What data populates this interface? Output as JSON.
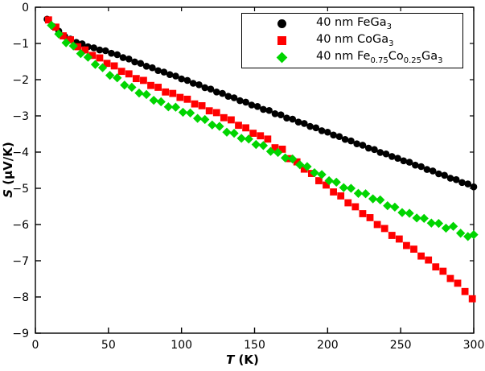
{
  "chart_data": {
    "type": "scatter",
    "title": "",
    "xlabel_var": "T",
    "xlabel_unit": " (K)",
    "ylabel_var": "S",
    "ylabel_unit": " (µV/K)",
    "xlim": [
      0,
      300
    ],
    "ylim": [
      -9,
      0
    ],
    "grid": false,
    "legend_position": "upper right",
    "background_color": "#ffffff",
    "axis_color": "#000000",
    "x_ticks": {
      "values": [
        0,
        50,
        100,
        150,
        200,
        250,
        300
      ],
      "labels": [
        "0",
        "50",
        "100",
        "150",
        "200",
        "250",
        "300"
      ]
    },
    "y_ticks": {
      "values": [
        0,
        -1,
        -2,
        -3,
        -4,
        -5,
        -6,
        -7,
        -8,
        -9
      ],
      "labels": [
        "0",
        "−1",
        "−2",
        "−3",
        "−4",
        "−5",
        "−6",
        "−7",
        "−8",
        "−9"
      ]
    },
    "series": [
      {
        "name_parts": [
          "40 nm FeGa",
          [
            "3"
          ]
        ],
        "marker": "circle",
        "color": "#000000",
        "points": [
          [
            8,
            -0.33
          ],
          [
            12,
            -0.53
          ],
          [
            16,
            -0.66
          ],
          [
            20,
            -0.8
          ],
          [
            24,
            -0.88
          ],
          [
            28,
            -0.97
          ],
          [
            32,
            -1.01
          ],
          [
            36,
            -1.09
          ],
          [
            40,
            -1.12
          ],
          [
            44,
            -1.18
          ],
          [
            48,
            -1.2
          ],
          [
            52,
            -1.27
          ],
          [
            56,
            -1.31
          ],
          [
            60,
            -1.39
          ],
          [
            64,
            -1.43
          ],
          [
            68,
            -1.51
          ],
          [
            72,
            -1.55
          ],
          [
            76,
            -1.63
          ],
          [
            80,
            -1.67
          ],
          [
            84,
            -1.75
          ],
          [
            88,
            -1.79
          ],
          [
            92,
            -1.86
          ],
          [
            96,
            -1.9
          ],
          [
            100,
            -1.98
          ],
          [
            104,
            -2.02
          ],
          [
            108,
            -2.1
          ],
          [
            112,
            -2.14
          ],
          [
            116,
            -2.22
          ],
          [
            120,
            -2.26
          ],
          [
            124,
            -2.34
          ],
          [
            128,
            -2.38
          ],
          [
            132,
            -2.46
          ],
          [
            136,
            -2.5
          ],
          [
            140,
            -2.58
          ],
          [
            144,
            -2.62
          ],
          [
            148,
            -2.7
          ],
          [
            152,
            -2.74
          ],
          [
            156,
            -2.82
          ],
          [
            160,
            -2.85
          ],
          [
            164,
            -2.94
          ],
          [
            168,
            -2.97
          ],
          [
            172,
            -3.06
          ],
          [
            176,
            -3.09
          ],
          [
            180,
            -3.17
          ],
          [
            184,
            -3.21
          ],
          [
            188,
            -3.29
          ],
          [
            192,
            -3.33
          ],
          [
            196,
            -3.41
          ],
          [
            200,
            -3.45
          ],
          [
            204,
            -3.53
          ],
          [
            208,
            -3.57
          ],
          [
            212,
            -3.65
          ],
          [
            216,
            -3.69
          ],
          [
            220,
            -3.77
          ],
          [
            224,
            -3.81
          ],
          [
            228,
            -3.89
          ],
          [
            232,
            -3.93
          ],
          [
            236,
            -4.01
          ],
          [
            240,
            -4.05
          ],
          [
            244,
            -4.12
          ],
          [
            248,
            -4.17
          ],
          [
            252,
            -4.24
          ],
          [
            256,
            -4.28
          ],
          [
            260,
            -4.36
          ],
          [
            264,
            -4.4
          ],
          [
            268,
            -4.48
          ],
          [
            272,
            -4.52
          ],
          [
            276,
            -4.6
          ],
          [
            280,
            -4.64
          ],
          [
            284,
            -4.72
          ],
          [
            288,
            -4.76
          ],
          [
            292,
            -4.84
          ],
          [
            296,
            -4.88
          ],
          [
            300,
            -4.96
          ]
        ]
      },
      {
        "name_parts": [
          "40 nm CoGa",
          [
            "3"
          ]
        ],
        "marker": "square",
        "color": "#ff0000",
        "points": [
          [
            9,
            -0.35
          ],
          [
            14,
            -0.55
          ],
          [
            19,
            -0.79
          ],
          [
            24,
            -0.9
          ],
          [
            29,
            -1.09
          ],
          [
            34,
            -1.18
          ],
          [
            39,
            -1.33
          ],
          [
            44,
            -1.4
          ],
          [
            49,
            -1.55
          ],
          [
            54,
            -1.62
          ],
          [
            59,
            -1.77
          ],
          [
            64,
            -1.84
          ],
          [
            69,
            -1.97
          ],
          [
            74,
            -2.02
          ],
          [
            79,
            -2.16
          ],
          [
            84,
            -2.21
          ],
          [
            89,
            -2.34
          ],
          [
            94,
            -2.38
          ],
          [
            99,
            -2.49
          ],
          [
            104,
            -2.54
          ],
          [
            109,
            -2.67
          ],
          [
            114,
            -2.72
          ],
          [
            119,
            -2.86
          ],
          [
            124,
            -2.91
          ],
          [
            129,
            -3.05
          ],
          [
            134,
            -3.11
          ],
          [
            139,
            -3.26
          ],
          [
            144,
            -3.33
          ],
          [
            149,
            -3.48
          ],
          [
            154,
            -3.55
          ],
          [
            159,
            -3.64
          ],
          [
            164,
            -3.88
          ],
          [
            169,
            -3.92
          ],
          [
            174,
            -4.18
          ],
          [
            179,
            -4.27
          ],
          [
            184,
            -4.47
          ],
          [
            189,
            -4.59
          ],
          [
            194,
            -4.79
          ],
          [
            199,
            -4.91
          ],
          [
            204,
            -5.1
          ],
          [
            209,
            -5.21
          ],
          [
            214,
            -5.4
          ],
          [
            219,
            -5.51
          ],
          [
            224,
            -5.7
          ],
          [
            229,
            -5.81
          ],
          [
            234,
            -6.0
          ],
          [
            239,
            -6.11
          ],
          [
            244,
            -6.3
          ],
          [
            249,
            -6.4
          ],
          [
            254,
            -6.58
          ],
          [
            259,
            -6.68
          ],
          [
            264,
            -6.87
          ],
          [
            269,
            -6.98
          ],
          [
            274,
            -7.17
          ],
          [
            279,
            -7.29
          ],
          [
            284,
            -7.49
          ],
          [
            289,
            -7.62
          ],
          [
            294,
            -7.85
          ],
          [
            299,
            -8.05
          ]
        ]
      },
      {
        "name_parts": [
          "40 nm Fe",
          [
            "0.75"
          ],
          "Co",
          [
            "0.25"
          ],
          "Ga",
          [
            "3"
          ]
        ],
        "marker": "diamond",
        "color": "#00d500",
        "points": [
          [
            11,
            -0.5
          ],
          [
            16,
            -0.74
          ],
          [
            21,
            -0.98
          ],
          [
            26,
            -1.07
          ],
          [
            31,
            -1.28
          ],
          [
            36,
            -1.38
          ],
          [
            41,
            -1.58
          ],
          [
            46,
            -1.67
          ],
          [
            51,
            -1.88
          ],
          [
            56,
            -1.95
          ],
          [
            61,
            -2.15
          ],
          [
            66,
            -2.21
          ],
          [
            71,
            -2.37
          ],
          [
            76,
            -2.41
          ],
          [
            81,
            -2.57
          ],
          [
            86,
            -2.61
          ],
          [
            91,
            -2.75
          ],
          [
            96,
            -2.76
          ],
          [
            101,
            -2.9
          ],
          [
            106,
            -2.92
          ],
          [
            111,
            -3.07
          ],
          [
            116,
            -3.1
          ],
          [
            121,
            -3.25
          ],
          [
            126,
            -3.29
          ],
          [
            131,
            -3.45
          ],
          [
            136,
            -3.48
          ],
          [
            141,
            -3.62
          ],
          [
            146,
            -3.64
          ],
          [
            151,
            -3.79
          ],
          [
            156,
            -3.82
          ],
          [
            161,
            -3.98
          ],
          [
            166,
            -4.01
          ],
          [
            171,
            -4.16
          ],
          [
            176,
            -4.19
          ],
          [
            181,
            -4.35
          ],
          [
            186,
            -4.4
          ],
          [
            191,
            -4.57
          ],
          [
            196,
            -4.62
          ],
          [
            201,
            -4.79
          ],
          [
            206,
            -4.83
          ],
          [
            211,
            -4.98
          ],
          [
            216,
            -5.0
          ],
          [
            221,
            -5.14
          ],
          [
            226,
            -5.15
          ],
          [
            231,
            -5.29
          ],
          [
            236,
            -5.32
          ],
          [
            241,
            -5.48
          ],
          [
            246,
            -5.52
          ],
          [
            251,
            -5.67
          ],
          [
            256,
            -5.69
          ],
          [
            261,
            -5.82
          ],
          [
            266,
            -5.83
          ],
          [
            271,
            -5.96
          ],
          [
            276,
            -5.97
          ],
          [
            281,
            -6.1
          ],
          [
            286,
            -6.05
          ],
          [
            291,
            -6.24
          ],
          [
            296,
            -6.33
          ],
          [
            300,
            -6.28
          ]
        ]
      }
    ]
  }
}
